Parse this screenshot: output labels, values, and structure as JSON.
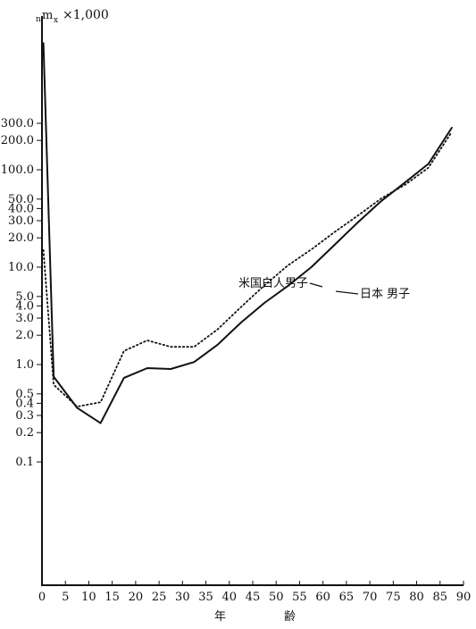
{
  "chart_data": {
    "type": "line",
    "ylabel_prefix": "n",
    "ylabel_main": "m",
    "ylabel_sub": "x",
    "ylabel_suffix": "×1,000",
    "xlabel_left": "年",
    "xlabel_right": "齢",
    "yscale": "log",
    "ylim": [
      0.1,
      300
    ],
    "xlim": [
      0,
      90
    ],
    "x_ticks": [
      0,
      5,
      10,
      15,
      20,
      25,
      30,
      35,
      40,
      45,
      50,
      55,
      60,
      65,
      70,
      75,
      80,
      85,
      90
    ],
    "x_tick_labels": [
      "0",
      "5",
      "10",
      "15",
      "20",
      "25",
      "30",
      "35",
      "40",
      "45",
      "50",
      "55",
      "60",
      "65",
      "70",
      "75",
      "80",
      "85",
      "90"
    ],
    "y_ticks": [
      0.1,
      0.2,
      0.3,
      0.4,
      0.5,
      1.0,
      2.0,
      3.0,
      4.0,
      5.0,
      10.0,
      20.0,
      30.0,
      40.0,
      50.0,
      100.0,
      200.0,
      300.0
    ],
    "y_tick_labels": [
      "0.1",
      "0.2",
      "0.3",
      "0.4",
      "0.5",
      "1.0",
      "2.0",
      "3.0",
      "4.0",
      "5.0",
      "10.0",
      "20.0",
      "30.0",
      "40.0",
      "50.0",
      "100.0",
      "200.0",
      "300.0"
    ],
    "grid": false,
    "series": [
      {
        "name": "日本 男子",
        "style": "solid",
        "color": "#111111",
        "x": [
          0.3,
          2.5,
          7.5,
          12.5,
          17.5,
          22.5,
          27.5,
          32.5,
          37.5,
          42.5,
          47.5,
          52.5,
          57.5,
          62.5,
          67.5,
          72.5,
          77.5,
          82.5,
          87.5
        ],
        "y": [
          2000,
          0.75,
          0.36,
          0.25,
          0.73,
          0.92,
          0.9,
          1.06,
          1.6,
          2.7,
          4.3,
          6.4,
          10.0,
          17,
          29,
          48,
          74,
          115,
          270
        ]
      },
      {
        "name": "米国白人男子",
        "style": "dotted",
        "color": "#111111",
        "x": [
          0.3,
          2.5,
          7.5,
          12.5,
          17.5,
          22.5,
          27.5,
          32.5,
          37.5,
          42.5,
          47.5,
          52.5,
          57.5,
          62.5,
          67.5,
          72.5,
          77.5,
          82.5,
          87.5
        ],
        "y": [
          15,
          0.62,
          0.37,
          0.41,
          1.38,
          1.77,
          1.52,
          1.52,
          2.3,
          3.9,
          6.5,
          10.4,
          15.2,
          23,
          34,
          51,
          70,
          105,
          245
        ]
      }
    ],
    "annotations": [
      {
        "text": "米国白人男子",
        "series": 1
      },
      {
        "text": "日本 男子",
        "series": 0
      }
    ]
  }
}
